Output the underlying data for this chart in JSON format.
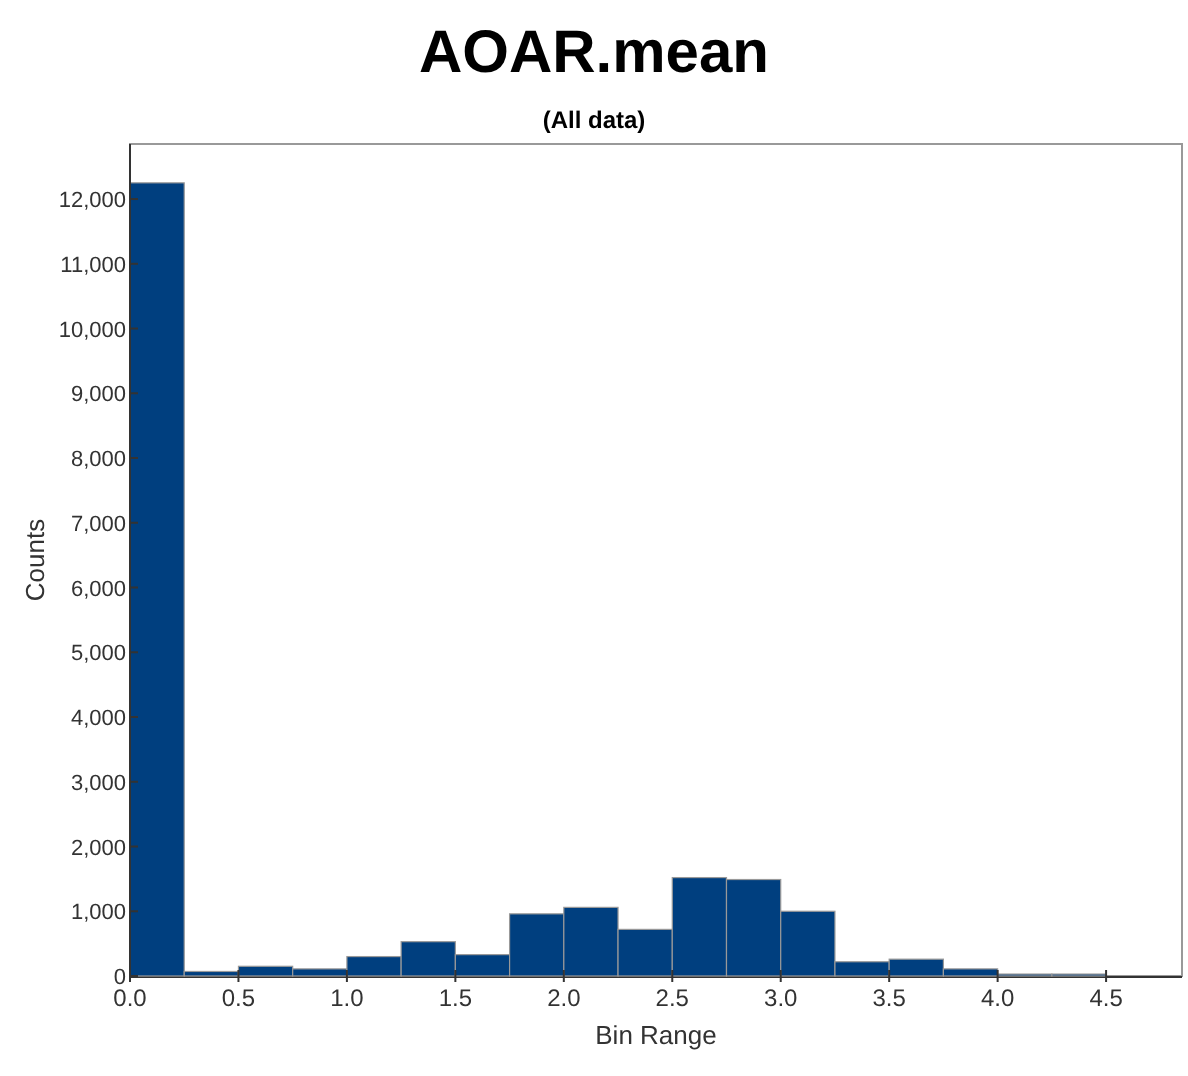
{
  "chart_data": {
    "type": "histogram",
    "title": "AOAR.mean",
    "subtitle": "(All data)",
    "xlabel": "Bin Range",
    "ylabel": "Counts",
    "bins": [
      0,
      0.25,
      0.5,
      0.75,
      1.0,
      1.25,
      1.5,
      1.75,
      2.0,
      2.25,
      2.5,
      2.75,
      3.0,
      3.25,
      3.5,
      3.75,
      4.0,
      4.25,
      4.5
    ],
    "values": [
      12250,
      70,
      150,
      110,
      300,
      530,
      330,
      960,
      1060,
      720,
      1520,
      1490,
      1000,
      220,
      260,
      110,
      30,
      30
    ],
    "color": "#003f7f",
    "xlim": [
      0,
      4.85
    ],
    "ylim": [
      0,
      12850
    ],
    "xticks": [
      {
        "value": 0,
        "label": "0.0"
      },
      0.5,
      {
        "value": 1,
        "label": "1.0"
      },
      1.5,
      {
        "value": 2,
        "label": "2.0"
      },
      2.5,
      {
        "value": 3,
        "label": "3.0"
      },
      3.5,
      {
        "value": 4,
        "label": "4.0"
      },
      4.5
    ],
    "yticks": [
      0,
      {
        "value": 1000,
        "label": "1,000"
      },
      {
        "value": 2000,
        "label": "2,000"
      },
      {
        "value": 3000,
        "label": "3,000"
      },
      {
        "value": 4000,
        "label": "4,000"
      },
      {
        "value": 5000,
        "label": "5,000"
      },
      {
        "value": 6000,
        "label": "6,000"
      },
      {
        "value": 7000,
        "label": "7,000"
      },
      {
        "value": 8000,
        "label": "8,000"
      },
      {
        "value": 9000,
        "label": "9,000"
      },
      {
        "value": 10000,
        "label": "10,000"
      },
      {
        "value": 11000,
        "label": "11,000"
      },
      {
        "value": 12000,
        "label": "12,000"
      }
    ]
  }
}
